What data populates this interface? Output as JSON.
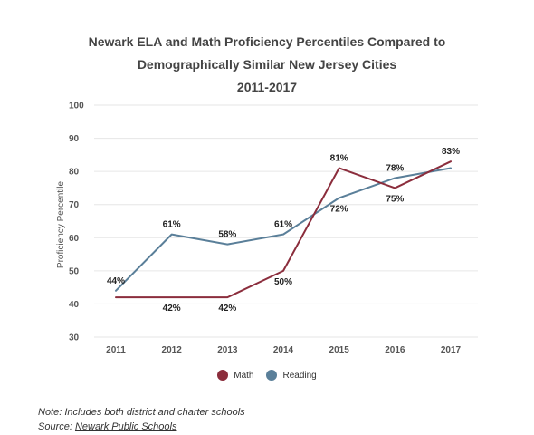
{
  "chart_data": {
    "type": "line",
    "title_lines": [
      "Newark ELA and Math Proficiency Percentiles Compared to",
      "Demographically Similar New Jersey Cities",
      "2011-2017"
    ],
    "xlabel": "",
    "ylabel": "Proficiency Percentile",
    "ylim": [
      30,
      100
    ],
    "yticks": [
      30,
      40,
      50,
      60,
      70,
      80,
      90,
      100
    ],
    "x": [
      "2011",
      "2012",
      "2013",
      "2014",
      "2015",
      "2016",
      "2017"
    ],
    "grid": true,
    "legend_position": "bottom",
    "series": [
      {
        "name": "Math",
        "color": "#8b2d3c",
        "values": [
          42,
          42,
          42,
          50,
          81,
          75,
          83
        ],
        "labels": [
          "",
          "42%",
          "42%",
          "50%",
          "81%",
          "75%",
          "83%"
        ]
      },
      {
        "name": "Reading",
        "color": "#5a7f99",
        "values": [
          44,
          61,
          58,
          61,
          72,
          78,
          81
        ],
        "labels": [
          "44%",
          "61%",
          "58%",
          "61%",
          "72%",
          "78%",
          ""
        ]
      }
    ]
  },
  "notes": {
    "note": "Note: Includes both district and charter schools",
    "source_prefix": "Source: ",
    "source_link": "Newark Public Schools"
  }
}
